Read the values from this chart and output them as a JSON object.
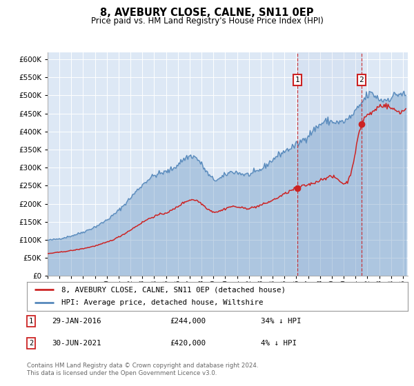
{
  "title": "8, AVEBURY CLOSE, CALNE, SN11 0EP",
  "subtitle": "Price paid vs. HM Land Registry's House Price Index (HPI)",
  "hpi_color": "#5588bb",
  "price_color": "#cc2222",
  "background_color": "#dde8f5",
  "plot_bg": "#dde8f5",
  "sale1_value": 244000,
  "sale2_value": 420000,
  "legend_line1": "8, AVEBURY CLOSE, CALNE, SN11 0EP (detached house)",
  "legend_line2": "HPI: Average price, detached house, Wiltshire",
  "note1_date": "29-JAN-2016",
  "note1_price": "£244,000",
  "note1_pct": "34% ↓ HPI",
  "note2_date": "30-JUN-2021",
  "note2_price": "£420,000",
  "note2_pct": "4% ↓ HPI",
  "footer": "Contains HM Land Registry data © Crown copyright and database right 2024.\nThis data is licensed under the Open Government Licence v3.0.",
  "ylim_max": 620000,
  "ylim_min": 0
}
